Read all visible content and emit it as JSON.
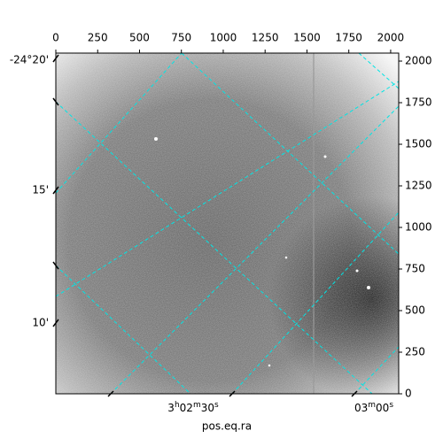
{
  "chart_data": {
    "type": "image",
    "x_label": "pos.eq.ra",
    "xlim": [
      0,
      2048
    ],
    "xticks": [
      0,
      250,
      500,
      750,
      1000,
      1250,
      1500,
      1750,
      2000
    ],
    "ylim": [
      0,
      2048
    ],
    "yticks": [
      0,
      250,
      500,
      750,
      1000,
      1250,
      1500,
      1750,
      2000
    ],
    "ra_ticks": [
      "3h02m30s",
      "03m00s"
    ],
    "dec_ticks": [
      "-24°20'",
      "15'",
      "10'"
    ],
    "grid_color": "#00e5e5"
  }
}
